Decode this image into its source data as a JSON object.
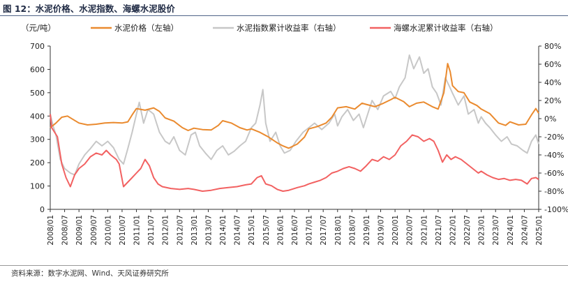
{
  "title": "图 12：水泥价格、水泥指数、海螺水泥股价",
  "source": "资料来源：数字水泥网、Wind、天风证券研究所",
  "chart_data": {
    "type": "line",
    "ylabel_left": "（元/吨）",
    "ylim_left": [
      0,
      700
    ],
    "yticks_left": [
      "0",
      "100",
      "200",
      "300",
      "400",
      "500",
      "600",
      "700"
    ],
    "ylim_right": [
      -100,
      80
    ],
    "yticks_right": [
      "-100%",
      "-80%",
      "-60%",
      "-40%",
      "-20%",
      "0%",
      "20%",
      "40%",
      "60%",
      "80%"
    ],
    "x_range": [
      2008.0,
      2025.0
    ],
    "x_ticks": [
      "2008/01",
      "2008/07",
      "2009/01",
      "2009/07",
      "2010/01",
      "2010/07",
      "2011/01",
      "2011/07",
      "2012/01",
      "2012/07",
      "2013/01",
      "2013/07",
      "2014/01",
      "2014/07",
      "2015/01",
      "2015/07",
      "2016/01",
      "2016/07",
      "2017/01",
      "2017/07",
      "2018/01",
      "2018/07",
      "2019/01",
      "2019/07",
      "2020/01",
      "2020/07",
      "2021/01",
      "2021/07",
      "2022/01",
      "2022/07",
      "2023/01",
      "2023/07",
      "2024/01",
      "2024/07",
      "2025/01"
    ],
    "series": [
      {
        "name": "水泥价格（左轴）",
        "axis": "left",
        "color": "#ea8a2e",
        "points": [
          [
            2008.0,
            350
          ],
          [
            2008.2,
            370
          ],
          [
            2008.4,
            395
          ],
          [
            2008.6,
            400
          ],
          [
            2008.8,
            385
          ],
          [
            2009.0,
            370
          ],
          [
            2009.3,
            362
          ],
          [
            2009.6,
            365
          ],
          [
            2009.9,
            370
          ],
          [
            2010.2,
            372
          ],
          [
            2010.5,
            370
          ],
          [
            2010.7,
            375
          ],
          [
            2010.85,
            405
          ],
          [
            2011.0,
            432
          ],
          [
            2011.3,
            425
          ],
          [
            2011.6,
            435
          ],
          [
            2011.8,
            420
          ],
          [
            2012.0,
            392
          ],
          [
            2012.3,
            378
          ],
          [
            2012.6,
            350
          ],
          [
            2012.8,
            338
          ],
          [
            2013.0,
            348
          ],
          [
            2013.3,
            342
          ],
          [
            2013.6,
            340
          ],
          [
            2013.85,
            360
          ],
          [
            2014.0,
            380
          ],
          [
            2014.3,
            370
          ],
          [
            2014.6,
            350
          ],
          [
            2014.85,
            340
          ],
          [
            2015.0,
            345
          ],
          [
            2015.3,
            330
          ],
          [
            2015.6,
            310
          ],
          [
            2015.9,
            285
          ],
          [
            2016.1,
            272
          ],
          [
            2016.3,
            262
          ],
          [
            2016.6,
            280
          ],
          [
            2016.85,
            310
          ],
          [
            2017.0,
            345
          ],
          [
            2017.3,
            355
          ],
          [
            2017.6,
            370
          ],
          [
            2017.8,
            395
          ],
          [
            2018.0,
            435
          ],
          [
            2018.3,
            440
          ],
          [
            2018.6,
            430
          ],
          [
            2018.85,
            455
          ],
          [
            2019.0,
            450
          ],
          [
            2019.3,
            440
          ],
          [
            2019.6,
            455
          ],
          [
            2019.85,
            470
          ],
          [
            2020.0,
            480
          ],
          [
            2020.3,
            462
          ],
          [
            2020.5,
            440
          ],
          [
            2020.75,
            455
          ],
          [
            2021.0,
            460
          ],
          [
            2021.3,
            440
          ],
          [
            2021.5,
            430
          ],
          [
            2021.7,
            500
          ],
          [
            2021.83,
            625
          ],
          [
            2021.92,
            590
          ],
          [
            2022.0,
            530
          ],
          [
            2022.2,
            505
          ],
          [
            2022.4,
            500
          ],
          [
            2022.6,
            460
          ],
          [
            2022.85,
            445
          ],
          [
            2023.0,
            430
          ],
          [
            2023.3,
            410
          ],
          [
            2023.6,
            370
          ],
          [
            2023.85,
            360
          ],
          [
            2024.0,
            375
          ],
          [
            2024.3,
            362
          ],
          [
            2024.55,
            365
          ],
          [
            2024.75,
            405
          ],
          [
            2024.9,
            432
          ],
          [
            2025.0,
            412
          ]
        ]
      },
      {
        "name": "水泥指数累计收益率（右轴）",
        "axis": "right",
        "color": "#c7c7c7",
        "points": [
          [
            2008.0,
            5
          ],
          [
            2008.1,
            -8
          ],
          [
            2008.2,
            -18
          ],
          [
            2008.35,
            -45
          ],
          [
            2008.5,
            -55
          ],
          [
            2008.7,
            -60
          ],
          [
            2008.85,
            -62
          ],
          [
            2009.0,
            -50
          ],
          [
            2009.2,
            -40
          ],
          [
            2009.4,
            -33
          ],
          [
            2009.6,
            -25
          ],
          [
            2009.8,
            -30
          ],
          [
            2010.0,
            -25
          ],
          [
            2010.2,
            -32
          ],
          [
            2010.4,
            -45
          ],
          [
            2010.55,
            -50
          ],
          [
            2010.7,
            -33
          ],
          [
            2010.85,
            -15
          ],
          [
            2011.0,
            5
          ],
          [
            2011.1,
            18
          ],
          [
            2011.25,
            -5
          ],
          [
            2011.4,
            10
          ],
          [
            2011.6,
            5
          ],
          [
            2011.8,
            -15
          ],
          [
            2012.0,
            -25
          ],
          [
            2012.15,
            -28
          ],
          [
            2012.3,
            -20
          ],
          [
            2012.5,
            -35
          ],
          [
            2012.7,
            -40
          ],
          [
            2012.9,
            -18
          ],
          [
            2013.05,
            -15
          ],
          [
            2013.2,
            -30
          ],
          [
            2013.4,
            -38
          ],
          [
            2013.6,
            -45
          ],
          [
            2013.8,
            -35
          ],
          [
            2014.0,
            -30
          ],
          [
            2014.2,
            -40
          ],
          [
            2014.4,
            -36
          ],
          [
            2014.6,
            -30
          ],
          [
            2014.8,
            -25
          ],
          [
            2015.0,
            -10
          ],
          [
            2015.15,
            -5
          ],
          [
            2015.3,
            15
          ],
          [
            2015.4,
            32
          ],
          [
            2015.5,
            -5
          ],
          [
            2015.65,
            -25
          ],
          [
            2015.85,
            -15
          ],
          [
            2016.0,
            -30
          ],
          [
            2016.15,
            -38
          ],
          [
            2016.35,
            -35
          ],
          [
            2016.55,
            -25
          ],
          [
            2016.8,
            -15
          ],
          [
            2017.0,
            -10
          ],
          [
            2017.2,
            -5
          ],
          [
            2017.45,
            -12
          ],
          [
            2017.7,
            -5
          ],
          [
            2017.9,
            5
          ],
          [
            2018.0,
            -8
          ],
          [
            2018.15,
            2
          ],
          [
            2018.35,
            10
          ],
          [
            2018.55,
            -2
          ],
          [
            2018.75,
            5
          ],
          [
            2018.9,
            -10
          ],
          [
            2019.0,
            0
          ],
          [
            2019.2,
            20
          ],
          [
            2019.4,
            10
          ],
          [
            2019.6,
            25
          ],
          [
            2019.85,
            30
          ],
          [
            2020.0,
            22
          ],
          [
            2020.15,
            35
          ],
          [
            2020.35,
            45
          ],
          [
            2020.5,
            70
          ],
          [
            2020.65,
            55
          ],
          [
            2020.85,
            68
          ],
          [
            2021.0,
            50
          ],
          [
            2021.15,
            55
          ],
          [
            2021.3,
            35
          ],
          [
            2021.45,
            28
          ],
          [
            2021.6,
            15
          ],
          [
            2021.75,
            45
          ],
          [
            2021.9,
            35
          ],
          [
            2022.0,
            28
          ],
          [
            2022.2,
            15
          ],
          [
            2022.4,
            25
          ],
          [
            2022.55,
            5
          ],
          [
            2022.75,
            10
          ],
          [
            2022.9,
            -5
          ],
          [
            2023.0,
            2
          ],
          [
            2023.15,
            -5
          ],
          [
            2023.3,
            -10
          ],
          [
            2023.5,
            -18
          ],
          [
            2023.7,
            -25
          ],
          [
            2023.9,
            -20
          ],
          [
            2024.05,
            -28
          ],
          [
            2024.25,
            -30
          ],
          [
            2024.45,
            -35
          ],
          [
            2024.6,
            -38
          ],
          [
            2024.75,
            -25
          ],
          [
            2024.9,
            -18
          ],
          [
            2025.0,
            -28
          ]
        ]
      },
      {
        "name": "海螺水泥累计收益率（右轴）",
        "axis": "right",
        "color": "#f26161",
        "points": [
          [
            2008.0,
            5
          ],
          [
            2008.05,
            -10
          ],
          [
            2008.15,
            -15
          ],
          [
            2008.25,
            -20
          ],
          [
            2008.4,
            -50
          ],
          [
            2008.55,
            -65
          ],
          [
            2008.7,
            -75
          ],
          [
            2008.85,
            -62
          ],
          [
            2009.0,
            -55
          ],
          [
            2009.2,
            -50
          ],
          [
            2009.4,
            -42
          ],
          [
            2009.6,
            -38
          ],
          [
            2009.8,
            -40
          ],
          [
            2009.95,
            -35
          ],
          [
            2010.1,
            -40
          ],
          [
            2010.3,
            -45
          ],
          [
            2010.4,
            -50
          ],
          [
            2010.55,
            -75
          ],
          [
            2010.7,
            -70
          ],
          [
            2010.85,
            -65
          ],
          [
            2011.0,
            -60
          ],
          [
            2011.15,
            -55
          ],
          [
            2011.3,
            -45
          ],
          [
            2011.45,
            -52
          ],
          [
            2011.6,
            -65
          ],
          [
            2011.75,
            -72
          ],
          [
            2011.9,
            -75
          ],
          [
            2012.2,
            -77
          ],
          [
            2012.5,
            -78
          ],
          [
            2012.8,
            -77
          ],
          [
            2013.0,
            -78
          ],
          [
            2013.3,
            -80
          ],
          [
            2013.6,
            -79
          ],
          [
            2013.9,
            -77
          ],
          [
            2014.2,
            -76
          ],
          [
            2014.5,
            -75
          ],
          [
            2014.8,
            -73
          ],
          [
            2015.0,
            -72
          ],
          [
            2015.2,
            -65
          ],
          [
            2015.35,
            -63
          ],
          [
            2015.5,
            -72
          ],
          [
            2015.7,
            -74
          ],
          [
            2015.9,
            -78
          ],
          [
            2016.1,
            -80
          ],
          [
            2016.3,
            -79
          ],
          [
            2016.6,
            -76
          ],
          [
            2016.85,
            -74
          ],
          [
            2017.0,
            -72
          ],
          [
            2017.2,
            -70
          ],
          [
            2017.4,
            -68
          ],
          [
            2017.6,
            -65
          ],
          [
            2017.8,
            -60
          ],
          [
            2018.0,
            -58
          ],
          [
            2018.2,
            -55
          ],
          [
            2018.4,
            -53
          ],
          [
            2018.6,
            -55
          ],
          [
            2018.8,
            -58
          ],
          [
            2019.0,
            -52
          ],
          [
            2019.2,
            -45
          ],
          [
            2019.4,
            -47
          ],
          [
            2019.6,
            -42
          ],
          [
            2019.8,
            -45
          ],
          [
            2020.0,
            -40
          ],
          [
            2020.2,
            -30
          ],
          [
            2020.4,
            -25
          ],
          [
            2020.6,
            -18
          ],
          [
            2020.8,
            -20
          ],
          [
            2021.0,
            -25
          ],
          [
            2021.2,
            -22
          ],
          [
            2021.35,
            -25
          ],
          [
            2021.5,
            -35
          ],
          [
            2021.65,
            -48
          ],
          [
            2021.8,
            -40
          ],
          [
            2021.95,
            -45
          ],
          [
            2022.1,
            -42
          ],
          [
            2022.3,
            -45
          ],
          [
            2022.5,
            -50
          ],
          [
            2022.7,
            -55
          ],
          [
            2022.9,
            -60
          ],
          [
            2023.0,
            -58
          ],
          [
            2023.2,
            -62
          ],
          [
            2023.4,
            -65
          ],
          [
            2023.6,
            -67
          ],
          [
            2023.8,
            -66
          ],
          [
            2024.0,
            -68
          ],
          [
            2024.2,
            -67
          ],
          [
            2024.4,
            -68
          ],
          [
            2024.6,
            -72
          ],
          [
            2024.75,
            -66
          ],
          [
            2024.9,
            -65
          ],
          [
            2025.0,
            -67
          ]
        ]
      }
    ]
  }
}
